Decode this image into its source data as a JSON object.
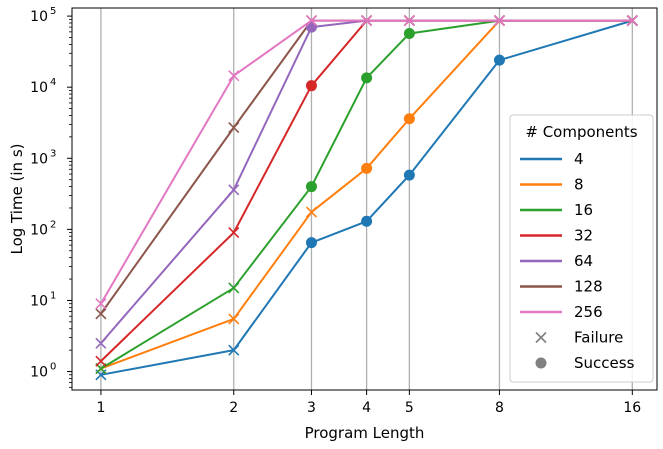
{
  "chart_data": {
    "type": "line",
    "xscale": "log",
    "yscale": "log",
    "xlabel": "Program Length",
    "ylabel": "Log Time (in s)",
    "x": [
      1,
      2,
      3,
      4,
      5,
      8,
      16
    ],
    "x_ticks": [
      "1",
      "2",
      "3",
      "4",
      "5",
      "8",
      "16"
    ],
    "y_ticks": [
      {
        "value": 1,
        "base": "10",
        "exp": "0"
      },
      {
        "value": 10,
        "base": "10",
        "exp": "1"
      },
      {
        "value": 100,
        "base": "10",
        "exp": "2"
      },
      {
        "value": 1000,
        "base": "10",
        "exp": "3"
      },
      {
        "value": 10000,
        "base": "10",
        "exp": "4"
      },
      {
        "value": 100000,
        "base": "10",
        "exp": "5"
      }
    ],
    "ylim": [
      0.55,
      130000
    ],
    "xlim": [
      0.86,
      18.2
    ],
    "grid": "vertical lines at x ticks",
    "legend": {
      "title": "# Components",
      "placement": "lower right",
      "marker_failure": "Failure",
      "marker_success": "Success"
    },
    "series": [
      {
        "name": "4",
        "color": "#1f77b4",
        "points": [
          {
            "x": 1,
            "y": 0.9,
            "status": "failure"
          },
          {
            "x": 2,
            "y": 2.0,
            "status": "failure"
          },
          {
            "x": 3,
            "y": 65,
            "status": "success"
          },
          {
            "x": 4,
            "y": 130,
            "status": "success"
          },
          {
            "x": 5,
            "y": 580,
            "status": "success"
          },
          {
            "x": 8,
            "y": 24000,
            "status": "success"
          },
          {
            "x": 16,
            "y": 86400,
            "status": "failure"
          }
        ]
      },
      {
        "name": "8",
        "color": "#ff7f0e",
        "points": [
          {
            "x": 1,
            "y": 1.1,
            "status": "failure"
          },
          {
            "x": 2,
            "y": 5.5,
            "status": "failure"
          },
          {
            "x": 3,
            "y": 175,
            "status": "failure"
          },
          {
            "x": 4,
            "y": 720,
            "status": "success"
          },
          {
            "x": 5,
            "y": 3600,
            "status": "success"
          },
          {
            "x": 8,
            "y": 86400,
            "status": "failure"
          },
          {
            "x": 16,
            "y": 86400,
            "status": "failure"
          }
        ]
      },
      {
        "name": "16",
        "color": "#2ca02c",
        "points": [
          {
            "x": 1,
            "y": 1.1,
            "status": "failure"
          },
          {
            "x": 2,
            "y": 15,
            "status": "failure"
          },
          {
            "x": 3,
            "y": 400,
            "status": "success"
          },
          {
            "x": 4,
            "y": 13500,
            "status": "success"
          },
          {
            "x": 5,
            "y": 57000,
            "status": "success"
          },
          {
            "x": 8,
            "y": 86400,
            "status": "failure"
          },
          {
            "x": 16,
            "y": 86400,
            "status": "failure"
          }
        ]
      },
      {
        "name": "32",
        "color": "#d62728",
        "points": [
          {
            "x": 1,
            "y": 1.4,
            "status": "failure"
          },
          {
            "x": 2,
            "y": 90,
            "status": "failure"
          },
          {
            "x": 3,
            "y": 10500,
            "status": "success"
          },
          {
            "x": 4,
            "y": 86400,
            "status": "failure"
          },
          {
            "x": 5,
            "y": 86400,
            "status": "failure"
          },
          {
            "x": 8,
            "y": 86400,
            "status": "failure"
          },
          {
            "x": 16,
            "y": 86400,
            "status": "failure"
          }
        ]
      },
      {
        "name": "64",
        "color": "#9467bd",
        "points": [
          {
            "x": 1,
            "y": 2.5,
            "status": "failure"
          },
          {
            "x": 2,
            "y": 360,
            "status": "failure"
          },
          {
            "x": 3,
            "y": 70000,
            "status": "success"
          },
          {
            "x": 4,
            "y": 86400,
            "status": "failure"
          },
          {
            "x": 5,
            "y": 86400,
            "status": "failure"
          },
          {
            "x": 8,
            "y": 86400,
            "status": "failure"
          },
          {
            "x": 16,
            "y": 86400,
            "status": "failure"
          }
        ]
      },
      {
        "name": "128",
        "color": "#8c564b",
        "points": [
          {
            "x": 1,
            "y": 6.5,
            "status": "failure"
          },
          {
            "x": 2,
            "y": 2700,
            "status": "failure"
          },
          {
            "x": 3,
            "y": 86400,
            "status": "failure"
          },
          {
            "x": 4,
            "y": 86400,
            "status": "failure"
          },
          {
            "x": 5,
            "y": 86400,
            "status": "failure"
          },
          {
            "x": 8,
            "y": 86400,
            "status": "failure"
          },
          {
            "x": 16,
            "y": 86400,
            "status": "failure"
          }
        ]
      },
      {
        "name": "256",
        "color": "#e377c2",
        "points": [
          {
            "x": 1,
            "y": 9,
            "status": "failure"
          },
          {
            "x": 2,
            "y": 14500,
            "status": "failure"
          },
          {
            "x": 3,
            "y": 86400,
            "status": "failure"
          },
          {
            "x": 4,
            "y": 86400,
            "status": "failure"
          },
          {
            "x": 5,
            "y": 86400,
            "status": "failure"
          },
          {
            "x": 8,
            "y": 86400,
            "status": "failure"
          },
          {
            "x": 16,
            "y": 86400,
            "status": "failure"
          }
        ]
      }
    ]
  }
}
